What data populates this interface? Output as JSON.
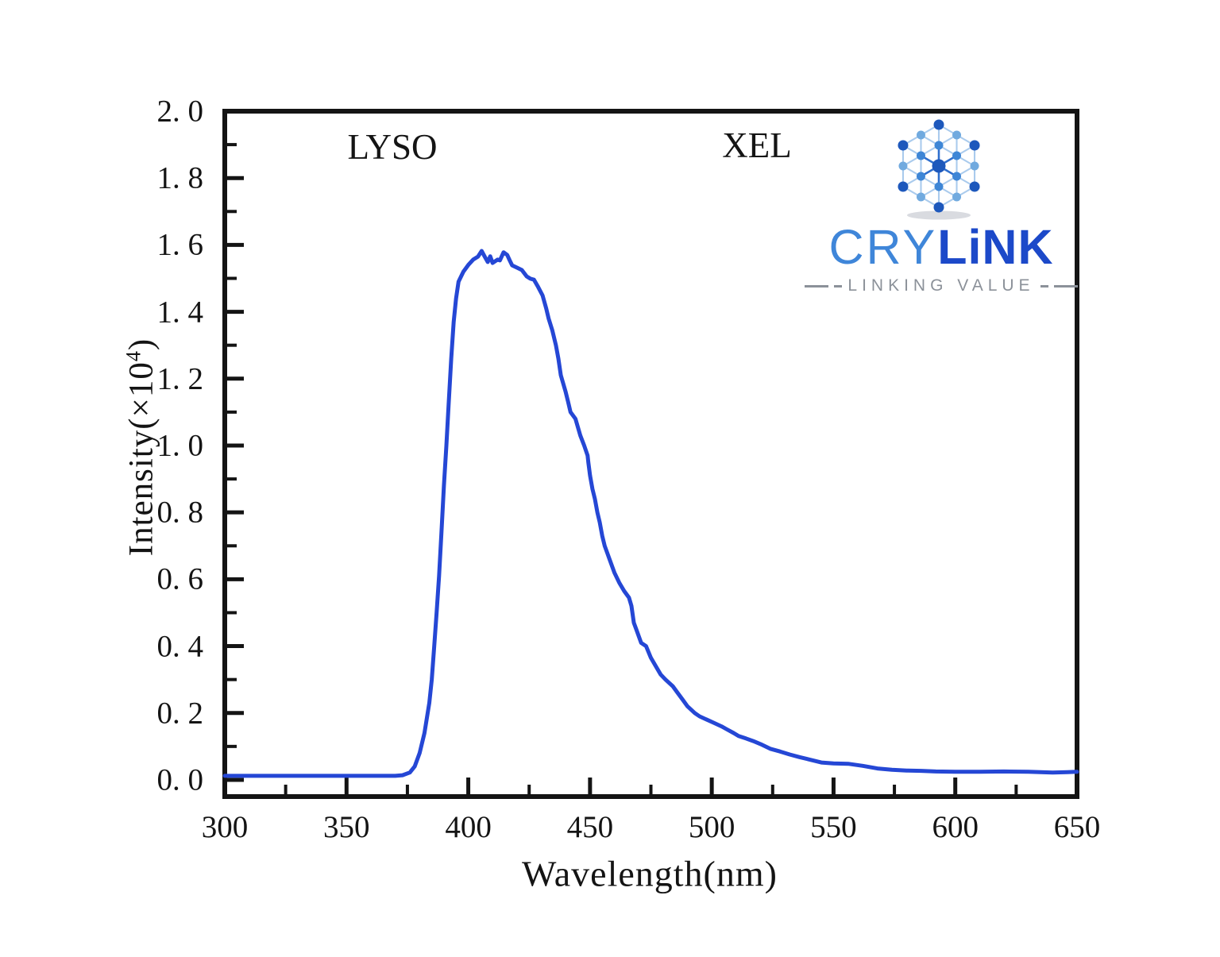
{
  "page": {
    "background": "#ffffff"
  },
  "chart_data": {
    "type": "line",
    "title": "",
    "xlabel": "Wavelength(nm)",
    "ylabel_prefix": "Intensity(×10",
    "ylabel_sup": "4",
    "ylabel_suffix": ")",
    "xlim": [
      300,
      650
    ],
    "ylim": [
      -0.05,
      2.0
    ],
    "grid": false,
    "legend": "none",
    "annotations": [
      {
        "text": "LYSO"
      },
      {
        "text": "XEL"
      }
    ],
    "x_axis": {
      "major_values": [
        300,
        350,
        400,
        450,
        500,
        550,
        600,
        650
      ],
      "major_labels": [
        "300",
        "350",
        "400",
        "450",
        "500",
        "550",
        "600",
        "650"
      ],
      "minor_values": [
        325,
        375,
        425,
        475,
        525,
        575,
        625
      ]
    },
    "y_axis": {
      "major_values": [
        0.0,
        0.2,
        0.4,
        0.6,
        0.8,
        1.0,
        1.2,
        1.4,
        1.6,
        1.8,
        2.0
      ],
      "major_labels": [
        "0. 0",
        "0. 2",
        "0. 4",
        "0. 6",
        "0. 8",
        "1. 0",
        "1. 2",
        "1. 4",
        "1. 6",
        "1. 8",
        "2. 0"
      ],
      "minor_values": [
        0.1,
        0.3,
        0.5,
        0.7,
        0.9,
        1.1,
        1.3,
        1.5,
        1.7,
        1.9
      ]
    },
    "series": [
      {
        "name": "LYSO XEL emission spectrum",
        "color": "#2547d5",
        "line_width": 5,
        "points": [
          [
            300,
            0.012
          ],
          [
            320,
            0.012
          ],
          [
            340,
            0.012
          ],
          [
            360,
            0.012
          ],
          [
            370,
            0.012
          ],
          [
            373,
            0.014
          ],
          [
            376,
            0.022
          ],
          [
            378,
            0.04
          ],
          [
            380,
            0.08
          ],
          [
            382,
            0.14
          ],
          [
            384,
            0.23
          ],
          [
            385,
            0.3
          ],
          [
            386,
            0.4
          ],
          [
            387,
            0.5
          ],
          [
            388,
            0.61
          ],
          [
            389,
            0.74
          ],
          [
            390,
            0.88
          ],
          [
            391,
            1.0
          ],
          [
            392,
            1.13
          ],
          [
            393,
            1.26
          ],
          [
            394,
            1.37
          ],
          [
            395,
            1.44
          ],
          [
            396,
            1.49
          ],
          [
            398,
            1.52
          ],
          [
            400,
            1.54
          ],
          [
            402,
            1.556
          ],
          [
            404,
            1.565
          ],
          [
            405.5,
            1.582
          ],
          [
            407,
            1.562
          ],
          [
            408,
            1.549
          ],
          [
            409,
            1.566
          ],
          [
            410,
            1.546
          ],
          [
            412,
            1.556
          ],
          [
            413,
            1.554
          ],
          [
            414.5,
            1.578
          ],
          [
            416,
            1.57
          ],
          [
            417,
            1.554
          ],
          [
            418,
            1.539
          ],
          [
            420,
            1.532
          ],
          [
            422,
            1.525
          ],
          [
            424,
            1.506
          ],
          [
            425.5,
            1.499
          ],
          [
            427,
            1.496
          ],
          [
            428.5,
            1.477
          ],
          [
            430.5,
            1.449
          ],
          [
            432,
            1.41
          ],
          [
            433,
            1.38
          ],
          [
            434.5,
            1.345
          ],
          [
            436,
            1.3
          ],
          [
            437,
            1.26
          ],
          [
            438,
            1.21
          ],
          [
            440,
            1.16
          ],
          [
            441,
            1.13
          ],
          [
            442,
            1.1
          ],
          [
            444,
            1.08
          ],
          [
            446,
            1.03
          ],
          [
            447.6,
            1.0
          ],
          [
            449,
            0.97
          ],
          [
            449.3,
            0.95
          ],
          [
            450,
            0.91
          ],
          [
            451,
            0.87
          ],
          [
            452,
            0.84
          ],
          [
            453,
            0.8
          ],
          [
            454,
            0.77
          ],
          [
            455,
            0.73
          ],
          [
            456,
            0.7
          ],
          [
            458,
            0.66
          ],
          [
            460,
            0.62
          ],
          [
            462,
            0.59
          ],
          [
            464,
            0.565
          ],
          [
            466,
            0.545
          ],
          [
            467,
            0.52
          ],
          [
            468,
            0.47
          ],
          [
            469,
            0.45
          ],
          [
            471,
            0.41
          ],
          [
            473,
            0.4
          ],
          [
            475,
            0.365
          ],
          [
            477,
            0.34
          ],
          [
            479,
            0.315
          ],
          [
            481,
            0.3
          ],
          [
            484,
            0.28
          ],
          [
            486,
            0.26
          ],
          [
            488,
            0.24
          ],
          [
            490,
            0.22
          ],
          [
            493,
            0.2
          ],
          [
            495,
            0.19
          ],
          [
            498,
            0.18
          ],
          [
            501,
            0.17
          ],
          [
            504,
            0.16
          ],
          [
            506,
            0.152
          ],
          [
            509,
            0.14
          ],
          [
            511,
            0.131
          ],
          [
            514,
            0.124
          ],
          [
            517,
            0.116
          ],
          [
            520,
            0.107
          ],
          [
            524,
            0.093
          ],
          [
            528,
            0.085
          ],
          [
            532,
            0.076
          ],
          [
            536,
            0.068
          ],
          [
            540,
            0.061
          ],
          [
            545,
            0.052
          ],
          [
            550,
            0.049
          ],
          [
            556,
            0.048
          ],
          [
            562,
            0.042
          ],
          [
            568,
            0.034
          ],
          [
            574,
            0.03
          ],
          [
            580,
            0.028
          ],
          [
            586,
            0.027
          ],
          [
            592,
            0.025
          ],
          [
            600,
            0.024
          ],
          [
            610,
            0.024
          ],
          [
            620,
            0.025
          ],
          [
            630,
            0.024
          ],
          [
            640,
            0.022
          ],
          [
            646,
            0.023
          ],
          [
            650,
            0.024
          ]
        ]
      }
    ],
    "frame_color": "#141414"
  },
  "logo": {
    "brand_light": "CRY",
    "brand_bold": "LiNK",
    "tagline": "LINKING VALUE",
    "colors": {
      "dot_dark": "#1d58bc",
      "dot_mid": "#3e86d6",
      "dot_light": "#71aadf",
      "edge": "#aacbed",
      "spoke": "#2f6fce",
      "brand_light": "#3f86d9",
      "brand_bold": "#1c49c9",
      "tagline": "#8b9199",
      "shadow": "#b9bec6"
    }
  }
}
